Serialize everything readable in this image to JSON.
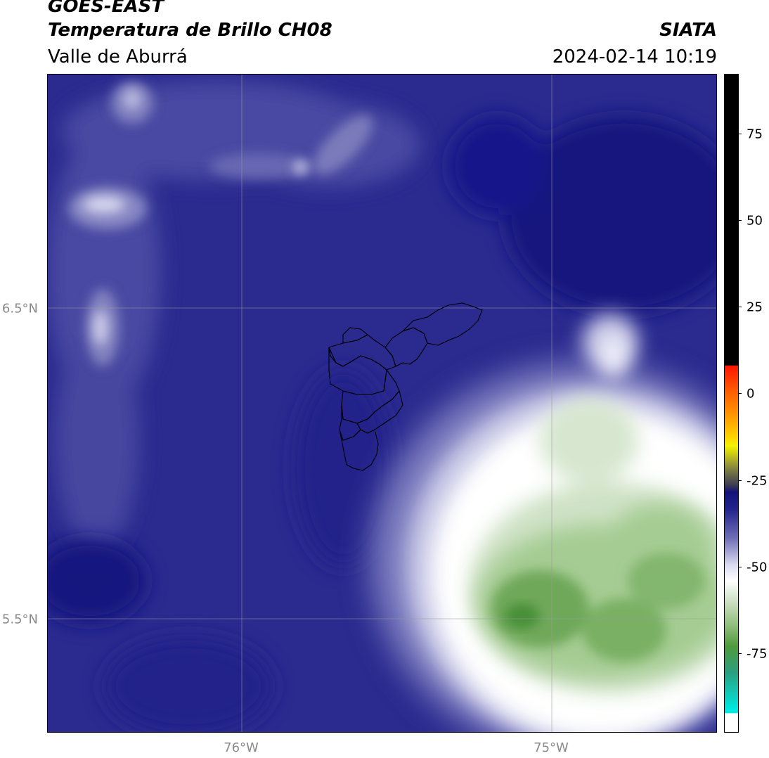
{
  "header": {
    "satellite": "GOES-EAST",
    "product": "Temperatura de Brillo CH08",
    "organization": "SIATA",
    "region": "Valle de Aburrá",
    "timestamp": "2024-02-14 10:19"
  },
  "map": {
    "lat_labels": [
      "6.5°N",
      "5.5°N"
    ],
    "lon_labels": [
      "76°W",
      "75°W"
    ],
    "gridlines": true
  },
  "colorbar": {
    "tick_labels": [
      "75",
      "50",
      "25",
      "0",
      "-25",
      "-50",
      "-75"
    ],
    "range": [
      -95,
      92
    ],
    "colors": {
      "black": "#000000",
      "red": "#ff2a00",
      "orange": "#ff9a00",
      "yellow": "#f2f200",
      "olive": "#808040",
      "navy": "#12127a",
      "lavender": "#9a9acc",
      "white": "#ffffff",
      "green": "#4f9a3c",
      "teal": "#2aa080",
      "cyan": "#00e8e0"
    }
  }
}
